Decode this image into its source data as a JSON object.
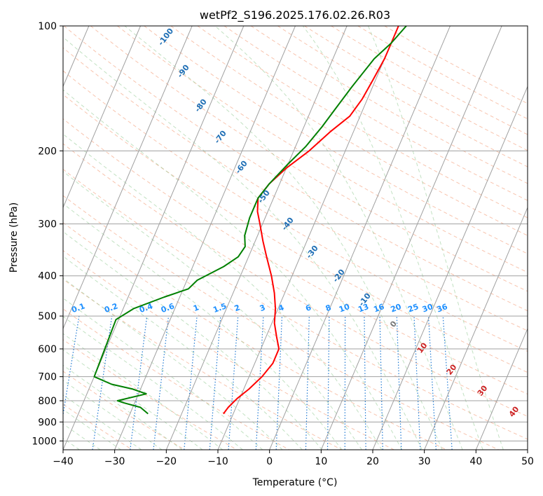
{
  "chart_data": {
    "type": "line",
    "subtype": "skew-t log-p diagram",
    "title": "wetPf2_S196.2025.176.02.26.R03",
    "xlabel": "Temperature (°C)",
    "ylabel": "Pressure (hPa)",
    "xlim": [
      -40,
      50
    ],
    "ylim": [
      1050,
      100
    ],
    "y_scale": "log",
    "grid": true,
    "x_ticks": [
      -40,
      -30,
      -20,
      -10,
      0,
      10,
      20,
      30,
      40,
      50
    ],
    "y_ticks": [
      100,
      200,
      300,
      400,
      500,
      600,
      700,
      800,
      900,
      1000
    ],
    "series": [
      {
        "color": "#ff0000",
        "points": [
          [
            -11.9,
            860
          ],
          [
            -11.5,
            830
          ],
          [
            -10.5,
            790
          ],
          [
            -9.0,
            750
          ],
          [
            -7.5,
            700
          ],
          [
            -6.5,
            650
          ],
          [
            -6.5,
            600
          ],
          [
            -8.0,
            560
          ],
          [
            -9.5,
            520
          ],
          [
            -10.5,
            480
          ],
          [
            -12.0,
            440
          ],
          [
            -14.0,
            400
          ],
          [
            -16.5,
            360
          ],
          [
            -18.5,
            330
          ],
          [
            -20.5,
            300
          ],
          [
            -22.0,
            280
          ],
          [
            -23.0,
            260
          ],
          [
            -22.0,
            240
          ],
          [
            -20.0,
            220
          ],
          [
            -17.0,
            200
          ],
          [
            -14.5,
            180
          ],
          [
            -12.0,
            165
          ],
          [
            -11.0,
            150
          ],
          [
            -10.5,
            135
          ],
          [
            -10.0,
            120
          ],
          [
            -10.0,
            110
          ],
          [
            -10.0,
            100
          ]
        ]
      },
      {
        "color": "#008000",
        "points": [
          [
            -26.5,
            860
          ],
          [
            -28.5,
            830
          ],
          [
            -32.0,
            810
          ],
          [
            -33.5,
            800
          ],
          [
            -28.5,
            770
          ],
          [
            -31.5,
            750
          ],
          [
            -36.0,
            730
          ],
          [
            -40.0,
            700
          ],
          [
            -40.5,
            510
          ],
          [
            -38.0,
            480
          ],
          [
            -33.0,
            450
          ],
          [
            -29.0,
            430
          ],
          [
            -28.0,
            410
          ],
          [
            -24.0,
            380
          ],
          [
            -22.0,
            360
          ],
          [
            -21.5,
            340
          ],
          [
            -22.5,
            320
          ],
          [
            -23.0,
            290
          ],
          [
            -23.0,
            260
          ],
          [
            -22.0,
            240
          ],
          [
            -20.0,
            215
          ],
          [
            -18.0,
            195
          ],
          [
            -16.5,
            175
          ],
          [
            -15.5,
            160
          ],
          [
            -14.0,
            140
          ],
          [
            -12.0,
            120
          ],
          [
            -10.0,
            110
          ],
          [
            -8.5,
            100
          ]
        ]
      }
    ],
    "dry_adiabat_labels": [
      "-100",
      "-90",
      "-80",
      "-70",
      "-60",
      "-50",
      "-40",
      "-30",
      "-20",
      "-10",
      "0",
      "10",
      "20",
      "30",
      "40"
    ],
    "mixing_ratio_labels": [
      "0.1",
      "0.2",
      "0.4",
      "0.6",
      "1",
      "1.5",
      "2",
      "3",
      "4",
      "6",
      "8",
      "10",
      "13",
      "16",
      "20",
      "25",
      "30",
      "36"
    ],
    "mixing_ratio_values": [
      0.1,
      0.2,
      0.4,
      0.6,
      1,
      1.5,
      2,
      3,
      4,
      6,
      8,
      10,
      13,
      16,
      20,
      25,
      30,
      36
    ]
  }
}
